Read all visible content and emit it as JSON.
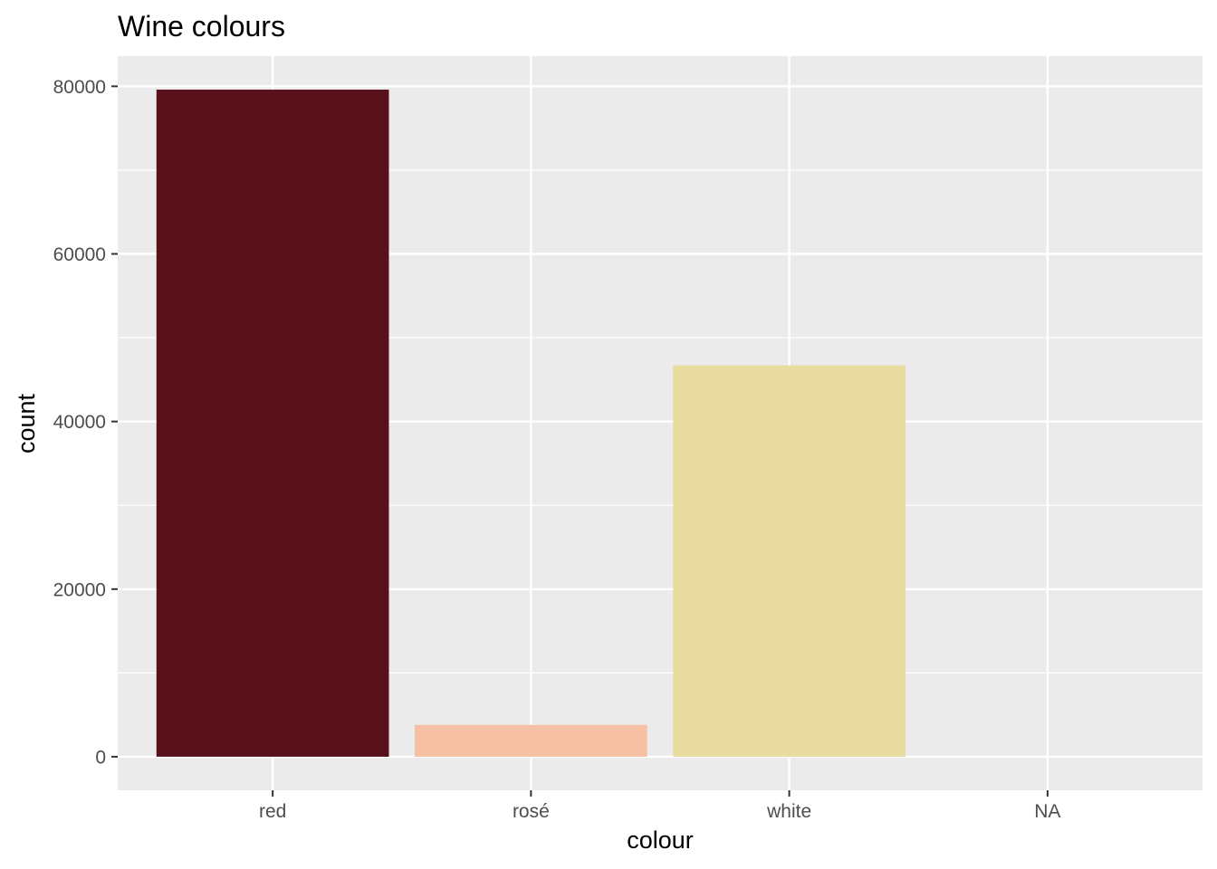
{
  "chart_data": {
    "type": "bar",
    "title": "Wine colours",
    "xlabel": "colour",
    "ylabel": "count",
    "categories": [
      "red",
      "rosé",
      "white",
      "NA"
    ],
    "values": [
      79600,
      3800,
      46700,
      0
    ],
    "colors": [
      "#58111a",
      "#f5c0a3",
      "#e9dca0",
      "#7f7f7f"
    ],
    "yticks": [
      0,
      20000,
      40000,
      60000,
      80000
    ],
    "ytick_labels": [
      "0",
      "20000",
      "40000",
      "60000",
      "80000"
    ],
    "ylim": [
      -4000,
      83600
    ],
    "grid": true,
    "panel_background": "#ebebeb",
    "grid_color": "#ffffff",
    "legend": "none"
  }
}
